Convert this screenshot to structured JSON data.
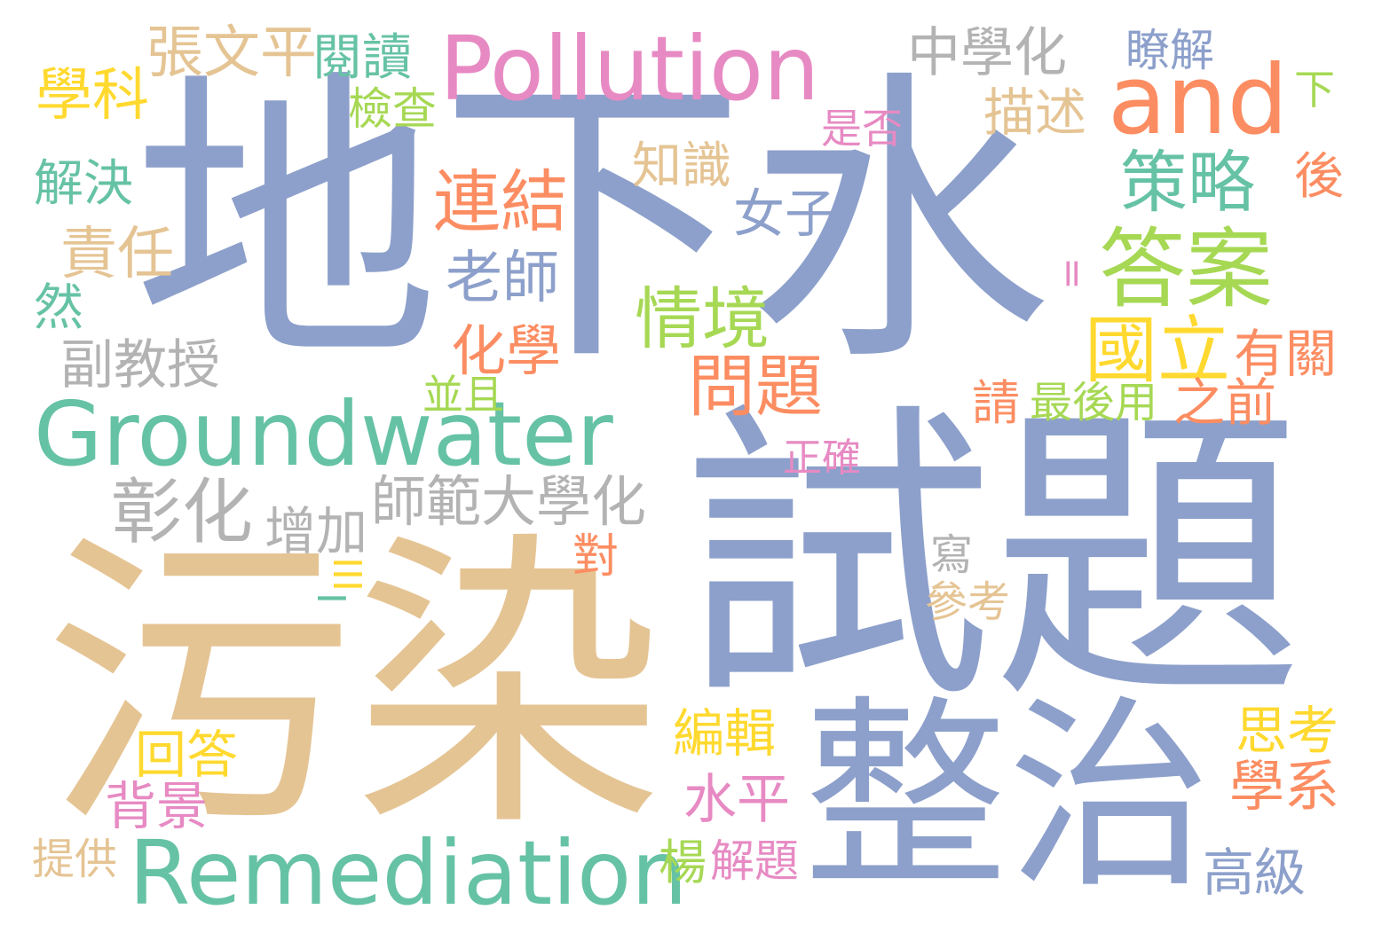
{
  "colors": {
    "blue": "#8da0cb",
    "tan": "#e5c494",
    "green": "#66c2a5",
    "pink": "#e78ac3",
    "orange": "#fc8d62",
    "yellow": "#ffd92f",
    "lime": "#a6d854",
    "gray": "#b3b3b3"
  },
  "words": [
    {
      "text": "地下水",
      "color": "blue"
    },
    {
      "text": "試題",
      "color": "blue"
    },
    {
      "text": "污染",
      "color": "tan"
    },
    {
      "text": "整治",
      "color": "blue"
    },
    {
      "text": "Pollution",
      "color": "pink"
    },
    {
      "text": "Groundwater",
      "color": "green"
    },
    {
      "text": "Remediation",
      "color": "green"
    },
    {
      "text": "and",
      "color": "orange"
    },
    {
      "text": "張文平",
      "color": "tan"
    },
    {
      "text": "閱讀",
      "color": "green"
    },
    {
      "text": "中學化",
      "color": "gray"
    },
    {
      "text": "瞭解",
      "color": "blue"
    },
    {
      "text": "學科",
      "color": "yellow"
    },
    {
      "text": "檢查",
      "color": "lime"
    },
    {
      "text": "描述",
      "color": "tan"
    },
    {
      "text": "下",
      "color": "lime"
    },
    {
      "text": "是否",
      "color": "pink"
    },
    {
      "text": "解決",
      "color": "green"
    },
    {
      "text": "連結",
      "color": "orange"
    },
    {
      "text": "知識",
      "color": "tan"
    },
    {
      "text": "策略",
      "color": "green"
    },
    {
      "text": "後",
      "color": "orange"
    },
    {
      "text": "女子",
      "color": "blue"
    },
    {
      "text": "責任",
      "color": "tan"
    },
    {
      "text": "答案",
      "color": "lime"
    },
    {
      "text": "老師",
      "color": "blue"
    },
    {
      "text": "=",
      "color": "pink"
    },
    {
      "text": "然",
      "color": "green"
    },
    {
      "text": "情境",
      "color": "lime"
    },
    {
      "text": "國立",
      "color": "yellow"
    },
    {
      "text": "有關",
      "color": "orange"
    },
    {
      "text": "副教授",
      "color": "gray"
    },
    {
      "text": "化學",
      "color": "orange"
    },
    {
      "text": "問題",
      "color": "orange"
    },
    {
      "text": "並且",
      "color": "lime"
    },
    {
      "text": "請",
      "color": "orange"
    },
    {
      "text": "最後用",
      "color": "lime"
    },
    {
      "text": "之前",
      "color": "orange"
    },
    {
      "text": "正確",
      "color": "pink"
    },
    {
      "text": "彰化",
      "color": "gray"
    },
    {
      "text": "師範大學化",
      "color": "gray"
    },
    {
      "text": "增加",
      "color": "gray"
    },
    {
      "text": "對",
      "color": "orange"
    },
    {
      "text": "寫",
      "color": "gray"
    },
    {
      "text": "III",
      "color": "yellow"
    },
    {
      "text": "參考",
      "color": "tan"
    },
    {
      "text": "I",
      "color": "green"
    },
    {
      "text": "編輯",
      "color": "yellow"
    },
    {
      "text": "思考",
      "color": "yellow"
    },
    {
      "text": "回答",
      "color": "yellow"
    },
    {
      "text": "學系",
      "color": "orange"
    },
    {
      "text": "背景",
      "color": "pink"
    },
    {
      "text": "水平",
      "color": "pink"
    },
    {
      "text": "提供",
      "color": "tan"
    },
    {
      "text": "楊",
      "color": "lime"
    },
    {
      "text": "解題",
      "color": "pink"
    },
    {
      "text": "高級",
      "color": "blue"
    }
  ]
}
